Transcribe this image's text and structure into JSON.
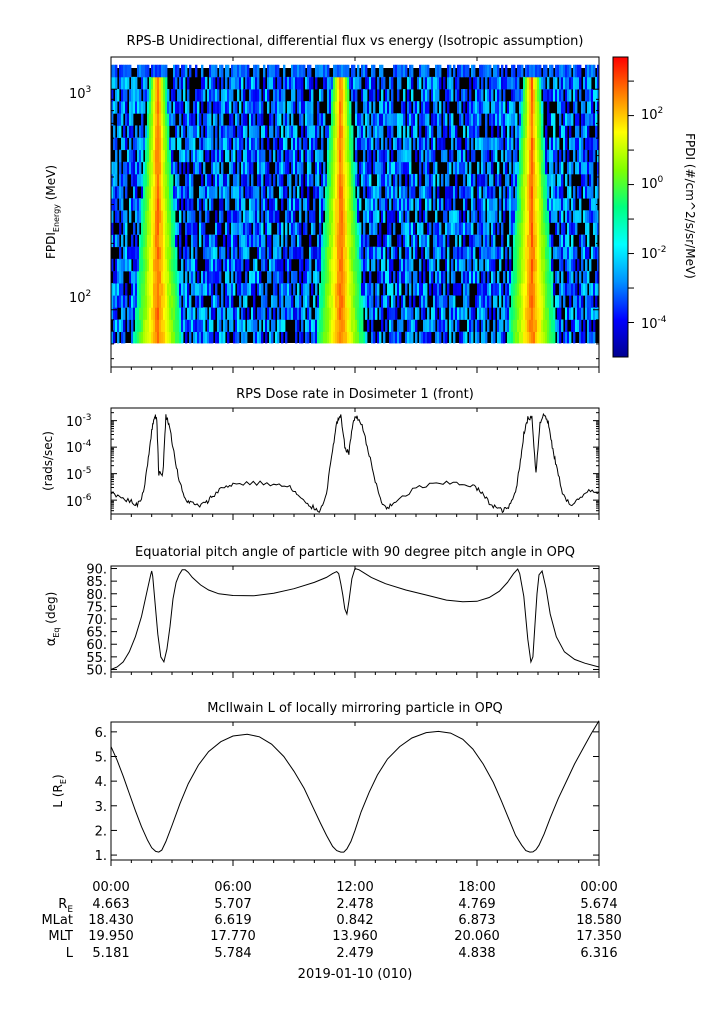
{
  "panels": [
    {
      "id": "spectrogram",
      "title": "RPS-B  Unidirectional, differential flux vs energy (Isotropic assumption)",
      "ylabel_main": "FPDI",
      "ylabel_sub": "Energy",
      "ylabel_unit": " (MeV)",
      "yticks": [
        "10",
        "10"
      ],
      "ytick_exps": [
        "3",
        "2"
      ],
      "colorbar_label": "FPDI (#/cm^2/s/sr/MeV)",
      "colorbar_ticks": [
        "10",
        "10",
        "10",
        "10"
      ],
      "colorbar_tick_exps": [
        "2",
        "0",
        "-2",
        "-4"
      ]
    },
    {
      "id": "dose",
      "title": "RPS  Dose rate in Dosimeter 1 (front)",
      "ylabel": "(rads/sec)",
      "yticks": [
        "10",
        "10",
        "10",
        "10"
      ],
      "ytick_exps": [
        "-3",
        "-4",
        "-5",
        "-6"
      ]
    },
    {
      "id": "pitch",
      "title": "Equatorial pitch angle of particle with 90 degree pitch angle in OPQ",
      "ylabel_main": "α",
      "ylabel_sub": "Eq",
      "ylabel_unit": " (deg)",
      "yticks": [
        "90.",
        "85.",
        "80.",
        "75.",
        "70.",
        "65.",
        "60.",
        "55.",
        "50."
      ]
    },
    {
      "id": "lshell",
      "title": "McIlwain L of locally mirroring particle in OPQ",
      "ylabel_main": "L (R",
      "ylabel_sub": "E",
      "ylabel_unit": ")",
      "yticks": [
        "6.",
        "5.",
        "4.",
        "3.",
        "2.",
        "1."
      ]
    }
  ],
  "xaxis": {
    "tick_labels": [
      "00:00",
      "06:00",
      "12:00",
      "18:00",
      "00:00"
    ],
    "rows": [
      {
        "name": "R",
        "sub": "E",
        "values": [
          "4.663",
          "5.707",
          "2.478",
          "4.769",
          "5.674"
        ]
      },
      {
        "name": "MLat",
        "sub": "",
        "values": [
          "18.430",
          "6.619",
          "0.842",
          "6.873",
          "18.580"
        ]
      },
      {
        "name": "MLT",
        "sub": "",
        "values": [
          "19.950",
          "17.770",
          "13.960",
          "20.060",
          "17.350"
        ]
      },
      {
        "name": "L",
        "sub": "",
        "values": [
          "5.181",
          "5.784",
          "2.479",
          "4.838",
          "6.316"
        ]
      }
    ],
    "date_label": "2019-01-10 (010)"
  },
  "chart_data": [
    {
      "type": "heatmap",
      "title": "RPS-B  Unidirectional, differential flux vs energy (Isotropic assumption)",
      "xlabel": "",
      "ylabel": "FPDI Energy (MeV)",
      "x_range_hours": [
        0,
        24
      ],
      "yscale": "log",
      "ylim": [
        55,
        1400
      ],
      "colorscale": "rainbow",
      "zscale": "log",
      "zlim": [
        1e-05,
        5000
      ],
      "colors": [
        "#000090",
        "#0000ff",
        "#0090ff",
        "#00ffff",
        "#00ff80",
        "#80ff00",
        "#ffff00",
        "#ff8000",
        "#ff0000"
      ],
      "peaks_hours": [
        2.3,
        11.3,
        20.7
      ]
    },
    {
      "type": "line",
      "title": "RPS  Dose rate in Dosimeter 1 (front)",
      "ylabel": "(rads/sec)",
      "yscale": "log",
      "ylim": [
        3e-07,
        0.003
      ],
      "x": [
        0,
        0.5,
        1.0,
        1.3,
        1.6,
        1.8,
        2.0,
        2.15,
        2.25,
        2.35,
        2.55,
        2.7,
        2.85,
        3.05,
        3.3,
        3.6,
        3.9,
        4.3,
        4.7,
        5.0,
        5.5,
        6.0,
        7.0,
        8.0,
        8.8,
        9.2,
        9.6,
        10.0,
        10.3,
        10.6,
        10.9,
        11.1,
        11.3,
        11.5,
        11.7,
        11.9,
        12.1,
        12.4,
        12.7,
        13.0,
        13.3,
        13.6,
        14.0,
        15.0,
        16.0,
        17.0,
        17.8,
        18.2,
        18.6,
        19.0,
        19.3,
        19.6,
        19.9,
        20.1,
        20.3,
        20.5,
        20.7,
        20.9,
        21.1,
        21.3,
        21.5,
        21.7,
        21.9,
        22.2,
        22.6,
        23.0,
        23.5,
        24.0
      ],
      "y": [
        2e-06,
        1.2e-06,
        9e-07,
        6e-07,
        2e-06,
        2.5e-05,
        0.0004,
        0.0016,
        0.0012,
        1e-05,
        1e-05,
        0.0015,
        0.0008,
        0.0001,
        8e-06,
        1.2e-06,
        8e-07,
        6e-07,
        8e-07,
        1.5e-06,
        3e-06,
        4e-06,
        4.5e-06,
        4e-06,
        3e-06,
        1.5e-06,
        7e-07,
        5e-07,
        4e-07,
        2e-06,
        8e-05,
        0.0008,
        0.0015,
        0.0001,
        6e-05,
        0.0009,
        0.0015,
        0.0005,
        5e-05,
        5e-06,
        8e-07,
        5e-07,
        8e-07,
        3e-06,
        4e-06,
        4.5e-06,
        3.5e-06,
        2e-06,
        8e-07,
        5e-07,
        4e-07,
        6e-07,
        2e-06,
        2e-05,
        0.0003,
        0.0012,
        0.0014,
        1e-05,
        0.0009,
        0.0017,
        0.0009,
        0.0001,
        2e-05,
        2e-06,
        6e-07,
        1e-06,
        2.5e-06,
        2e-06
      ]
    },
    {
      "type": "line",
      "title": "Equatorial pitch angle of particle with 90 degree pitch angle in OPQ",
      "ylabel": "αEq (deg)",
      "ylim": [
        49,
        91
      ],
      "x": [
        0,
        0.3,
        0.6,
        0.9,
        1.2,
        1.5,
        1.8,
        1.95,
        2.0,
        2.05,
        2.15,
        2.3,
        2.45,
        2.6,
        2.75,
        2.9,
        3.05,
        3.2,
        3.35,
        3.5,
        3.65,
        3.8,
        4.0,
        4.4,
        4.8,
        5.3,
        6.0,
        7.0,
        8.0,
        9.0,
        10.0,
        10.6,
        10.9,
        11.1,
        11.2,
        11.3,
        11.4,
        11.5,
        11.6,
        11.7,
        11.85,
        12.0,
        12.2,
        12.4,
        12.8,
        13.5,
        14.5,
        15.5,
        16.5,
        17.3,
        18.0,
        18.6,
        19.1,
        19.5,
        19.8,
        20.0,
        20.1,
        20.3,
        20.5,
        20.65,
        20.75,
        20.85,
        20.95,
        21.05,
        21.2,
        21.4,
        21.6,
        21.9,
        22.3,
        22.8,
        23.3,
        24.0
      ],
      "y": [
        50,
        51,
        53,
        57,
        63,
        71,
        82,
        87.5,
        89,
        87,
        78,
        64,
        55,
        53,
        58,
        67,
        78,
        84.5,
        87.5,
        89.5,
        89.5,
        88.5,
        86.5,
        83.5,
        81.5,
        80,
        79.3,
        79.2,
        80.2,
        82,
        84.5,
        86.5,
        88,
        88.8,
        88,
        84,
        79.5,
        74,
        72,
        77,
        86,
        90,
        89.5,
        88.5,
        86.5,
        84,
        81.5,
        79.5,
        77.5,
        76.8,
        77,
        78.5,
        81,
        84.5,
        88,
        89.8,
        88,
        79,
        62,
        53,
        55,
        68,
        80,
        87.5,
        89,
        82,
        72,
        63,
        57,
        54,
        52.5,
        51
      ]
    },
    {
      "type": "line",
      "title": "McIlwain L of locally mirroring particle in OPQ",
      "ylabel": "L (RE)",
      "ylim": [
        0.8,
        6.4
      ],
      "x": [
        0,
        0.3,
        0.6,
        0.9,
        1.2,
        1.5,
        1.8,
        2.0,
        2.2,
        2.35,
        2.5,
        2.7,
        3.0,
        3.4,
        3.8,
        4.3,
        4.8,
        5.4,
        6.0,
        6.7,
        7.3,
        7.9,
        8.5,
        9.0,
        9.5,
        9.9,
        10.3,
        10.6,
        10.9,
        11.1,
        11.3,
        11.45,
        11.6,
        11.8,
        12.0,
        12.3,
        12.7,
        13.1,
        13.6,
        14.2,
        14.8,
        15.5,
        16.1,
        16.7,
        17.3,
        17.8,
        18.3,
        18.8,
        19.2,
        19.6,
        19.9,
        20.2,
        20.4,
        20.6,
        20.75,
        20.9,
        21.05,
        21.3,
        21.6,
        22.0,
        22.4,
        22.8,
        23.2,
        23.6,
        24.0
      ],
      "y": [
        5.4,
        4.85,
        4.2,
        3.5,
        2.8,
        2.15,
        1.6,
        1.3,
        1.15,
        1.12,
        1.2,
        1.55,
        2.2,
        3.1,
        3.9,
        4.65,
        5.2,
        5.6,
        5.83,
        5.9,
        5.8,
        5.5,
        5.0,
        4.4,
        3.7,
        3.0,
        2.3,
        1.8,
        1.35,
        1.18,
        1.12,
        1.12,
        1.25,
        1.55,
        2.0,
        2.75,
        3.55,
        4.25,
        4.9,
        5.4,
        5.75,
        5.97,
        6.02,
        5.95,
        5.7,
        5.3,
        4.7,
        3.95,
        3.2,
        2.4,
        1.8,
        1.4,
        1.18,
        1.12,
        1.13,
        1.22,
        1.4,
        1.85,
        2.5,
        3.3,
        4.0,
        4.7,
        5.3,
        5.9,
        6.45
      ]
    }
  ]
}
